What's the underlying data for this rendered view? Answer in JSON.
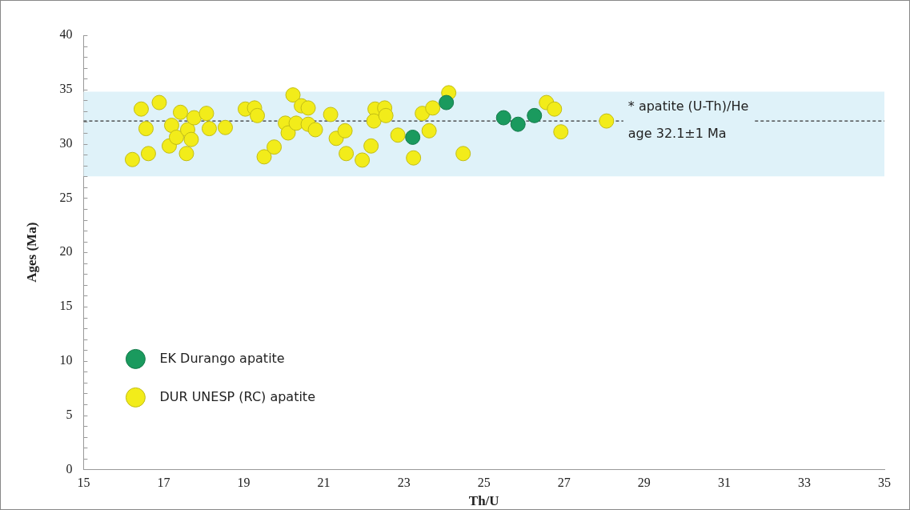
{
  "chart_data": {
    "type": "scatter",
    "xlabel": "Th/U",
    "ylabel": "Ages (Ma)",
    "xlim": [
      15,
      35
    ],
    "xticks": [
      15,
      17,
      19,
      21,
      23,
      25,
      27,
      29,
      31,
      33,
      35
    ],
    "ylim": [
      0,
      40
    ],
    "yticks": [
      0,
      5,
      10,
      15,
      20,
      25,
      30,
      35,
      40
    ],
    "grid": false,
    "legend": "bottom left",
    "marker": "circle",
    "series": [
      {
        "name": "EK Durango apatite",
        "color": "#1a9a5e",
        "x": [
          23.22,
          24.06,
          25.49,
          25.85,
          26.26
        ],
        "values": [
          30.6,
          33.8,
          32.4,
          31.8,
          32.6
        ]
      },
      {
        "name": "DUR UNESP (RC) apatite",
        "color": "#f2ec1a",
        "x": [
          16.22,
          16.44,
          16.62,
          16.89,
          16.56,
          17.42,
          17.14,
          17.2,
          17.32,
          17.6,
          17.69,
          17.57,
          17.76,
          18.07,
          18.14,
          18.54,
          19.04,
          19.17,
          19.27,
          19.34,
          19.51,
          19.76,
          20.23,
          20.44,
          20.61,
          20.04,
          20.11,
          20.31,
          20.61,
          20.79,
          21.17,
          21.31,
          21.53,
          21.56,
          21.96,
          22.28,
          22.25,
          22.18,
          22.52,
          22.55,
          22.85,
          23.24,
          23.46,
          23.72,
          23.63,
          24.12,
          24.48,
          26.56,
          26.76,
          26.92,
          28.06
        ],
        "values": [
          28.55,
          33.2,
          29.1,
          33.8,
          31.4,
          32.9,
          29.8,
          31.7,
          30.6,
          31.3,
          30.4,
          29.1,
          32.4,
          32.8,
          31.4,
          31.5,
          33.2,
          null,
          33.3,
          32.6,
          28.8,
          29.7,
          34.5,
          33.5,
          33.3,
          31.9,
          31.0,
          31.9,
          31.8,
          31.3,
          32.7,
          30.5,
          31.2,
          29.1,
          28.5,
          33.2,
          32.1,
          29.8,
          33.3,
          32.6,
          30.8,
          28.7,
          32.8,
          33.3,
          31.2,
          34.7,
          29.1,
          33.8,
          33.2,
          31.1,
          32.1
        ]
      }
    ],
    "ref_lines": [
      {
        "axis": "y",
        "value": 32.1,
        "label": "* apatite (U-Th)/He\nage 32.1±1 Ma",
        "line_style": "dashed",
        "color": "#333333"
      }
    ],
    "bands": [
      {
        "axis": "y",
        "from": 27,
        "to": 34.8,
        "color": "#dff2f9"
      }
    ]
  }
}
